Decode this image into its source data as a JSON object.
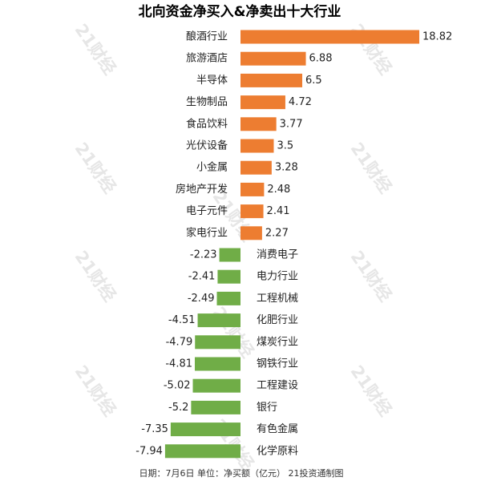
{
  "watermark": "21财经",
  "chart_data": {
    "type": "bar",
    "orientation": "horizontal",
    "title": "北向资金净买入&净卖出十大行业",
    "categories": [
      "酿酒行业",
      "旅游酒店",
      "半导体",
      "生物制品",
      "食品饮料",
      "光伏设备",
      "小金属",
      "房地产开发",
      "电子元件",
      "家电行业",
      "消费电子",
      "电力行业",
      "工程机械",
      "化肥行业",
      "煤炭行业",
      "钢铁行业",
      "工程建设",
      "银行",
      "有色金属",
      "化学原料"
    ],
    "values": [
      18.82,
      6.88,
      6.5,
      4.72,
      3.77,
      3.5,
      3.28,
      2.48,
      2.41,
      2.27,
      -2.23,
      -2.41,
      -2.49,
      -4.51,
      -4.79,
      -4.81,
      -5.02,
      -5.2,
      -7.35,
      -7.94
    ],
    "colors": {
      "positive": "#ED7D31",
      "negative": "#70AD47"
    },
    "grid": false,
    "legend": "none",
    "footer": "日期：7月6日 单位：净买额（亿元） 21投资通制图"
  }
}
